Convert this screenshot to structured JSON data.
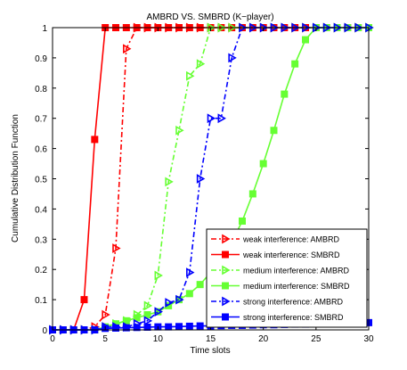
{
  "chart_data": {
    "type": "line",
    "title": "AMBRD VS. SMBRD (K−player)",
    "xlabel": "Time slots",
    "ylabel": "Cumulative Distribution Function",
    "xlim": [
      0,
      30
    ],
    "ylim": [
      0,
      1
    ],
    "grid": false,
    "legend_position": "bottom-right",
    "xticks": [
      0,
      5,
      10,
      15,
      20,
      25,
      30
    ],
    "yticks": [
      0,
      0.1,
      0.2,
      0.3,
      0.4,
      0.5,
      0.6,
      0.7,
      0.8,
      0.9,
      1
    ],
    "xtick_labels": [
      "0",
      "5",
      "10",
      "15",
      "20",
      "25",
      "30"
    ],
    "ytick_labels": [
      "0",
      "0.1",
      "0.2",
      "0.3",
      "0.4",
      "0.5",
      "0.6",
      "0.7",
      "0.8",
      "0.9",
      "1"
    ],
    "series": [
      {
        "name": "weak interference: AMBRD",
        "color": "#ff0000",
        "dash": "dashdot",
        "marker": "triangle-right",
        "x": [
          0,
          1,
          2,
          3,
          4,
          5,
          6,
          7,
          8,
          9,
          10,
          11,
          12,
          13,
          14,
          15,
          16,
          17,
          18,
          19,
          20,
          21,
          22,
          23,
          24,
          25,
          26,
          27,
          28,
          29,
          30
        ],
        "y": [
          0,
          0,
          0,
          0,
          0.01,
          0.05,
          0.27,
          0.93,
          1,
          1,
          1,
          1,
          1,
          1,
          1,
          1,
          1,
          1,
          1,
          1,
          1,
          1,
          1,
          1,
          1,
          1,
          1,
          1,
          1,
          1,
          1
        ]
      },
      {
        "name": "weak interference: SMBRD",
        "color": "#ff0000",
        "dash": "solid",
        "marker": "square",
        "x": [
          0,
          1,
          2,
          3,
          4,
          5,
          6,
          7,
          8,
          9,
          10,
          11,
          12,
          13,
          14,
          15,
          16,
          17,
          18,
          19,
          20,
          21,
          22,
          23,
          24,
          25,
          26,
          27,
          28,
          29,
          30
        ],
        "y": [
          0,
          0,
          0,
          0.1,
          0.63,
          1,
          1,
          1,
          1,
          1,
          1,
          1,
          1,
          1,
          1,
          1,
          1,
          1,
          1,
          1,
          1,
          1,
          1,
          1,
          1,
          1,
          1,
          1,
          1,
          1,
          1
        ]
      },
      {
        "name": "medium interference: AMBRD",
        "color": "#66ff33",
        "dash": "dashdot",
        "marker": "triangle-right",
        "x": [
          0,
          1,
          2,
          3,
          4,
          5,
          6,
          7,
          8,
          9,
          10,
          11,
          12,
          13,
          14,
          15,
          16,
          17,
          18,
          19,
          20,
          21,
          22,
          23,
          24,
          25,
          26,
          27,
          28,
          29,
          30
        ],
        "y": [
          0,
          0,
          0,
          0,
          0,
          0.01,
          0.02,
          0.03,
          0.05,
          0.08,
          0.18,
          0.49,
          0.66,
          0.84,
          0.88,
          1,
          1,
          1,
          1,
          1,
          1,
          1,
          1,
          1,
          1,
          1,
          1,
          1,
          1,
          1,
          1
        ]
      },
      {
        "name": "medium interference: SMBRD",
        "color": "#66ff33",
        "dash": "solid",
        "marker": "square",
        "x": [
          0,
          1,
          2,
          3,
          4,
          5,
          6,
          7,
          8,
          9,
          10,
          11,
          12,
          13,
          14,
          15,
          16,
          17,
          18,
          19,
          20,
          21,
          22,
          23,
          24,
          25,
          26,
          27,
          28,
          29,
          30
        ],
        "y": [
          0,
          0,
          0,
          0,
          0,
          0.01,
          0.02,
          0.03,
          0.04,
          0.05,
          0.06,
          0.08,
          0.1,
          0.12,
          0.15,
          0.19,
          0.23,
          0.29,
          0.36,
          0.45,
          0.55,
          0.66,
          0.78,
          0.88,
          0.96,
          1,
          1,
          1,
          1,
          1,
          1
        ]
      },
      {
        "name": "strong interference: AMBRD",
        "color": "#0000ff",
        "dash": "dashdot",
        "marker": "triangle-right",
        "x": [
          0,
          1,
          2,
          3,
          4,
          5,
          6,
          7,
          8,
          9,
          10,
          11,
          12,
          13,
          14,
          15,
          16,
          17,
          18,
          19,
          20,
          21,
          22,
          23,
          24,
          25,
          26,
          27,
          28,
          29,
          30
        ],
        "y": [
          0,
          0,
          0,
          0,
          0,
          0.01,
          0.01,
          0.01,
          0.02,
          0.03,
          0.06,
          0.09,
          0.1,
          0.19,
          0.5,
          0.7,
          0.7,
          0.9,
          1,
          1,
          1,
          1,
          1,
          1,
          1,
          1,
          1,
          1,
          1,
          1,
          1
        ]
      },
      {
        "name": "strong interference: SMBRD",
        "color": "#0000ff",
        "dash": "solid",
        "marker": "square",
        "x": [
          0,
          1,
          2,
          3,
          4,
          5,
          6,
          7,
          8,
          9,
          10,
          11,
          12,
          13,
          14,
          15,
          16,
          17,
          18,
          19,
          20,
          21,
          22,
          23,
          24,
          25,
          26,
          27,
          28,
          29,
          30
        ],
        "y": [
          0,
          0,
          0,
          0,
          0,
          0.005,
          0.006,
          0.007,
          0.008,
          0.009,
          0.01,
          0.01,
          0.011,
          0.012,
          0.013,
          0.013,
          0.014,
          0.015,
          0.015,
          0.016,
          0.017,
          0.017,
          0.018,
          0.019,
          0.019,
          0.02,
          0.021,
          0.021,
          0.022,
          0.023,
          0.024
        ]
      }
    ]
  }
}
